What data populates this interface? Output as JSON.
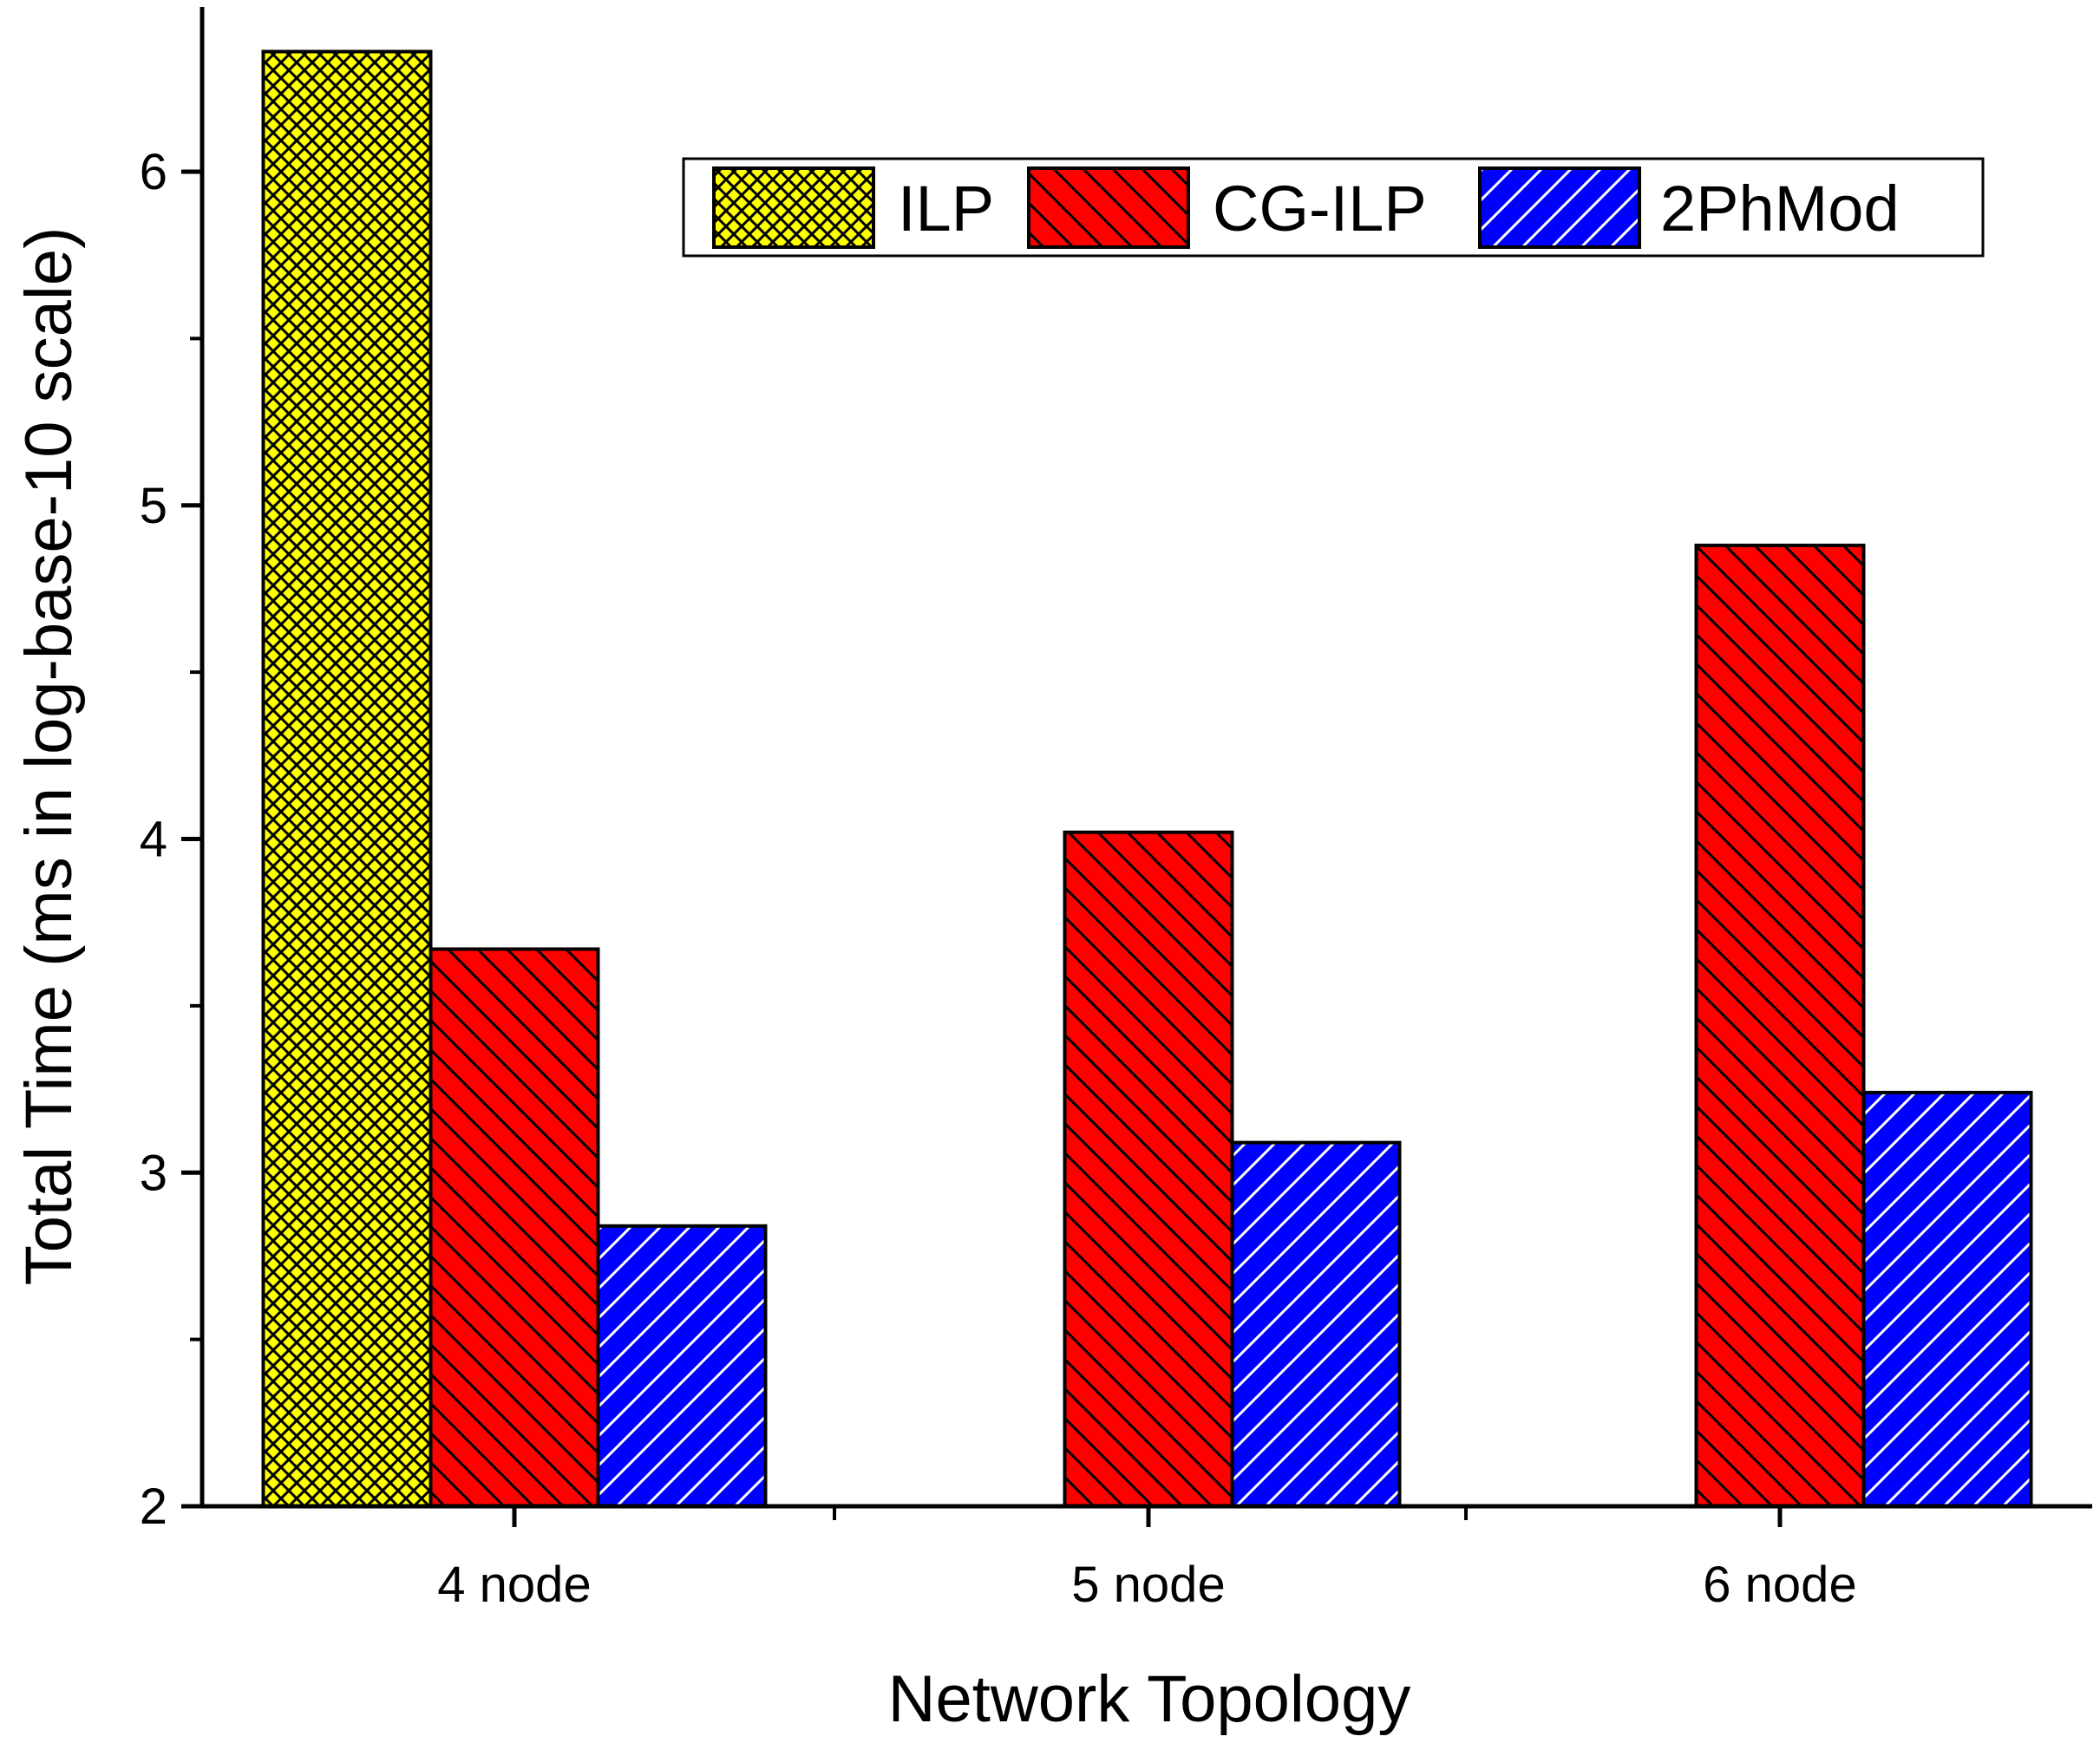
{
  "chart_data": {
    "type": "bar",
    "xlabel": "Network Topology",
    "ylabel": "Total Time (ms in log-base-10 scale)",
    "ylim": [
      2,
      6.4
    ],
    "yticks_labeled": [
      2,
      3,
      4,
      5,
      6
    ],
    "yticks_minor": [
      2.5,
      3.5,
      4.5,
      5.5
    ],
    "categories": [
      "4 node",
      "5 node",
      "6 node"
    ],
    "series": [
      {
        "name": "ILP",
        "values": [
          6.36,
          null,
          null
        ],
        "color": "#ffff00",
        "pattern": "crosshatch"
      },
      {
        "name": "CG-ILP",
        "values": [
          3.67,
          4.02,
          4.88
        ],
        "color": "#ff0000",
        "pattern": "back-diagonal"
      },
      {
        "name": "2PhMod",
        "values": [
          2.84,
          3.09,
          3.24
        ],
        "color": "#0000ff",
        "pattern": "forward-diagonal"
      }
    ],
    "legend": {
      "placement": "top-right"
    },
    "grid": false
  }
}
